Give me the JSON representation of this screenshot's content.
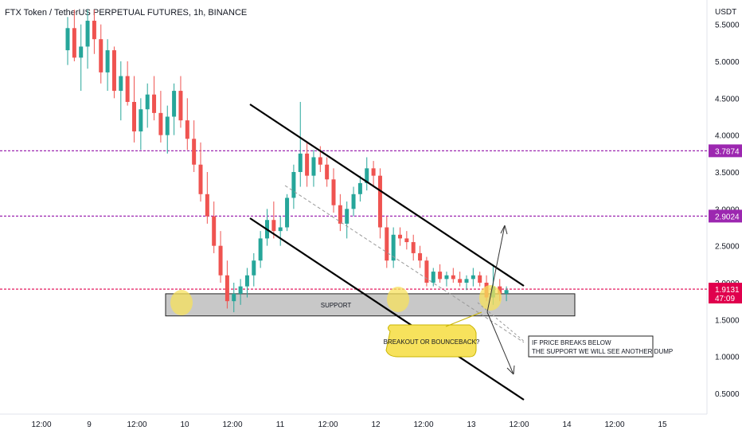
{
  "header": {
    "title": "FTX Token / TetherUS PERPETUAL FUTURES, 1h, BINANCE"
  },
  "chart_data": {
    "type": "candlestick",
    "currency_label": "USDT",
    "ylim": [
      0.2,
      5.7
    ],
    "y_ticks": [
      "0.5000",
      "1.0000",
      "1.5000",
      "2.0000",
      "2.5000",
      "3.0000",
      "3.5000",
      "4.0000",
      "4.5000",
      "5.0000",
      "5.5000"
    ],
    "x_ticks": [
      {
        "label": "12:00",
        "hour": -12
      },
      {
        "label": "9",
        "hour": 0
      },
      {
        "label": "12:00",
        "hour": 12
      },
      {
        "label": "10",
        "hour": 24
      },
      {
        "label": "12:00",
        "hour": 36
      },
      {
        "label": "11",
        "hour": 48
      },
      {
        "label": "12:00",
        "hour": 60
      },
      {
        "label": "12",
        "hour": 72
      },
      {
        "label": "12:00",
        "hour": 84
      },
      {
        "label": "13",
        "hour": 96
      },
      {
        "label": "12:00",
        "hour": 108
      },
      {
        "label": "14",
        "hour": 120
      },
      {
        "label": "12:00",
        "hour": 132
      },
      {
        "label": "15",
        "hour": 144
      }
    ],
    "candles_ohlc": [
      [
        5.15,
        5.6,
        4.95,
        5.45
      ],
      [
        5.45,
        5.7,
        5.0,
        5.05
      ],
      [
        5.05,
        5.5,
        4.6,
        5.2
      ],
      [
        5.2,
        5.7,
        4.9,
        5.55
      ],
      [
        5.55,
        5.7,
        5.1,
        5.3
      ],
      [
        5.3,
        5.5,
        4.7,
        4.85
      ],
      [
        4.85,
        5.3,
        4.6,
        5.15
      ],
      [
        5.15,
        5.2,
        4.5,
        4.6
      ],
      [
        4.6,
        5.0,
        4.2,
        4.8
      ],
      [
        4.8,
        5.0,
        4.4,
        4.45
      ],
      [
        4.45,
        4.8,
        3.9,
        4.05
      ],
      [
        4.05,
        4.5,
        3.8,
        4.35
      ],
      [
        4.35,
        4.7,
        4.1,
        4.55
      ],
      [
        4.55,
        4.8,
        4.2,
        4.3
      ],
      [
        4.3,
        4.6,
        3.9,
        4.0
      ],
      [
        4.0,
        4.4,
        3.75,
        4.25
      ],
      [
        4.25,
        4.7,
        4.0,
        4.6
      ],
      [
        4.6,
        4.8,
        4.1,
        4.2
      ],
      [
        4.2,
        4.5,
        3.8,
        3.95
      ],
      [
        3.95,
        4.2,
        3.5,
        3.6
      ],
      [
        3.6,
        3.9,
        3.1,
        3.2
      ],
      [
        3.2,
        3.5,
        2.8,
        2.9
      ],
      [
        2.9,
        3.1,
        2.4,
        2.5
      ],
      [
        2.5,
        2.7,
        2.0,
        2.1
      ],
      [
        2.1,
        2.3,
        1.65,
        1.75
      ],
      [
        1.75,
        2.0,
        1.6,
        1.85
      ],
      [
        1.85,
        2.05,
        1.7,
        1.95
      ],
      [
        1.95,
        2.2,
        1.8,
        2.1
      ],
      [
        2.1,
        2.4,
        1.95,
        2.3
      ],
      [
        2.3,
        2.7,
        2.2,
        2.6
      ],
      [
        2.6,
        3.0,
        2.5,
        2.85
      ],
      [
        2.85,
        3.1,
        2.6,
        2.7
      ],
      [
        2.7,
        2.9,
        2.5,
        2.75
      ],
      [
        2.75,
        3.2,
        2.7,
        3.15
      ],
      [
        3.15,
        3.6,
        3.0,
        3.5
      ],
      [
        3.5,
        4.45,
        3.3,
        3.75
      ],
      [
        3.75,
        3.9,
        3.3,
        3.45
      ],
      [
        3.45,
        3.8,
        3.3,
        3.7
      ],
      [
        3.7,
        3.85,
        3.5,
        3.6
      ],
      [
        3.6,
        3.7,
        3.3,
        3.4
      ],
      [
        3.4,
        3.55,
        2.95,
        3.05
      ],
      [
        3.05,
        3.2,
        2.7,
        2.8
      ],
      [
        2.8,
        3.1,
        2.6,
        3.0
      ],
      [
        3.0,
        3.3,
        2.9,
        3.2
      ],
      [
        3.2,
        3.45,
        3.1,
        3.35
      ],
      [
        3.35,
        3.7,
        3.25,
        3.55
      ],
      [
        3.55,
        3.65,
        3.3,
        3.45
      ],
      [
        3.45,
        3.55,
        2.6,
        2.75
      ],
      [
        2.75,
        2.9,
        2.2,
        2.3
      ],
      [
        2.3,
        2.75,
        2.2,
        2.65
      ],
      [
        2.65,
        2.75,
        2.5,
        2.6
      ],
      [
        2.6,
        2.7,
        2.45,
        2.55
      ],
      [
        2.55,
        2.65,
        2.3,
        2.4
      ],
      [
        2.4,
        2.5,
        2.2,
        2.3
      ],
      [
        2.3,
        2.35,
        1.95,
        2.0
      ],
      [
        2.0,
        2.2,
        1.95,
        2.15
      ],
      [
        2.15,
        2.25,
        2.0,
        2.05
      ],
      [
        2.05,
        2.15,
        1.95,
        2.1
      ],
      [
        2.1,
        2.2,
        2.0,
        2.05
      ],
      [
        2.05,
        2.15,
        1.95,
        2.0
      ],
      [
        2.0,
        2.1,
        1.9,
        2.05
      ],
      [
        2.05,
        2.2,
        1.95,
        2.1
      ],
      [
        2.1,
        2.15,
        1.95,
        2.0
      ],
      [
        2.0,
        2.1,
        1.75,
        1.8
      ],
      [
        1.8,
        2.25,
        1.7,
        1.95
      ],
      [
        1.95,
        2.05,
        1.75,
        1.85
      ],
      [
        1.85,
        1.95,
        1.75,
        1.9
      ]
    ],
    "horizontal_lines": [
      {
        "price_label": "3.7874",
        "value": 3.7874,
        "color": "#9c27b0"
      },
      {
        "price_label": "2.9024",
        "value": 2.9024,
        "color": "#9c27b0"
      },
      {
        "price_label": "1.9131",
        "value": 1.9131,
        "color": "#e0004d",
        "countdown": "47:09"
      }
    ],
    "support_zone": {
      "label": "SUPPORT",
      "from": 1.55,
      "to": 1.85
    },
    "annotations": [
      {
        "text": "BREAKOUT OR BOUNCEBACK?"
      },
      {
        "text_line1": "IF PRICE BREAKS BELOW",
        "text_line2": "THE SUPPORT WE WILL SEE ANOTHER DUMP"
      }
    ],
    "colors": {
      "up": "#26a69a",
      "down": "#ef5350",
      "purple_line": "#9c27b0",
      "current_price": "#e0004d",
      "highlight": "#f7e25c"
    }
  }
}
